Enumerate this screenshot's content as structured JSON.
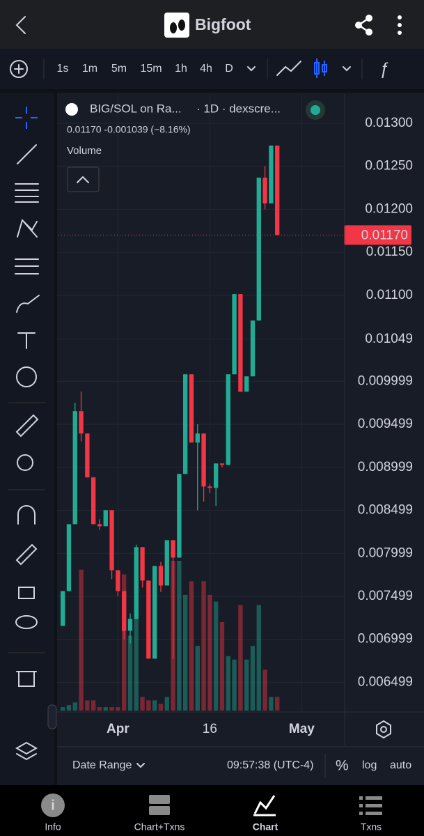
{
  "header": {
    "title": "Bigfoot"
  },
  "toolbar": {
    "intervals": [
      "1s",
      "1m",
      "5m",
      "15m",
      "1h",
      "4h",
      "D"
    ]
  },
  "legend": {
    "symbol": "BIG/SOL on Ra...",
    "source": "· 1D · dexscre...",
    "readout": "0.01170 -0.001039 (−8.16%)",
    "volume_label": "Volume"
  },
  "chart_data": {
    "type": "candlestick",
    "x": [
      -8,
      -7,
      -6,
      -5,
      -4,
      -3,
      -2,
      -1,
      0,
      1,
      2,
      3,
      4,
      5,
      6,
      7,
      8,
      9,
      10,
      11,
      12,
      13,
      14,
      15,
      16,
      17,
      18,
      19,
      20,
      21,
      22,
      23,
      24,
      25,
      26,
      27
    ],
    "open": [
      0.007155,
      0.00756,
      0.008338,
      0.009652,
      0.009392,
      0.008882,
      0.008338,
      0.008314,
      0.008501,
      0.007803,
      0.00756,
      0.007098,
      0.007236,
      0.008071,
      0.007682,
      0.006774,
      0.007852,
      0.007625,
      0.008152,
      0.007949,
      0.008922,
      0.010081,
      0.009287,
      0.009392,
      0.008776,
      0.00876,
      0.009044,
      0.009028,
      0.010081,
      0.011014,
      0.009879,
      0.010057,
      0.010706,
      0.012368,
      0.012068,
      0.012741
    ],
    "high": [
      0.00756,
      0.008338,
      0.009749,
      0.009879,
      0.009392,
      0.008882,
      0.008395,
      0.008501,
      0.008501,
      0.007803,
      0.00756,
      0.0073,
      0.0081,
      0.008071,
      0.007682,
      0.007852,
      0.0079,
      0.008152,
      0.008152,
      0.008922,
      0.010081,
      0.010081,
      0.0095,
      0.009392,
      0.0088,
      0.009044,
      0.009044,
      0.010081,
      0.011014,
      0.011014,
      0.010057,
      0.010706,
      0.012368,
      0.0125,
      0.012741,
      0.012741
    ],
    "low": [
      0.007155,
      0.00756,
      0.008338,
      0.0093,
      0.008882,
      0.008338,
      0.008273,
      0.008314,
      0.0077,
      0.0075,
      0.007,
      0.00695,
      0.007236,
      0.0076,
      0.006774,
      0.006774,
      0.00755,
      0.007625,
      0.006774,
      0.007949,
      0.008922,
      0.009287,
      0.0085,
      0.0086,
      0.0087,
      0.00855,
      0.009,
      0.009028,
      0.010081,
      0.009879,
      0.009879,
      0.010057,
      0.010706,
      0.012,
      0.012068,
      0.0117
    ],
    "close": [
      0.00756,
      0.008338,
      0.009652,
      0.009392,
      0.008882,
      0.008338,
      0.008314,
      0.008501,
      0.007803,
      0.00756,
      0.007098,
      0.007236,
      0.008071,
      0.007682,
      0.006774,
      0.007852,
      0.007625,
      0.008152,
      0.007949,
      0.008922,
      0.010081,
      0.009287,
      0.009392,
      0.008776,
      0.00876,
      0.009044,
      0.009028,
      0.010081,
      0.011014,
      0.009879,
      0.010057,
      0.010706,
      0.012368,
      0.012068,
      0.012741,
      0.0117
    ],
    "volume": [
      5,
      8,
      12,
      207,
      15,
      15,
      5,
      5,
      5,
      5,
      200,
      110,
      200,
      20,
      15,
      15,
      10,
      20,
      220,
      220,
      170,
      190,
      95,
      190,
      170,
      160,
      130,
      80,
      75,
      155,
      75,
      95,
      155,
      60,
      20,
      20
    ],
    "up_color": "#22ab94",
    "down_color": "#f23645",
    "xlim": [
      -8.7,
      38
    ],
    "xticks": [
      {
        "value": 1,
        "label": "Apr"
      },
      16,
      {
        "value": 31,
        "label": "May"
      }
    ],
    "ylim": [
      0.00617,
      0.01334
    ],
    "yticks": [
      {
        "value": 0.013,
        "label": "0.01300"
      },
      {
        "value": 0.0125,
        "label": "0.01250"
      },
      {
        "value": 0.012,
        "label": "0.01200"
      },
      {
        "value": 0.0115,
        "label": "0.01150"
      },
      {
        "value": 0.011,
        "label": "0.01100"
      },
      0.01049,
      0.009999,
      0.009499,
      0.008999,
      0.008499,
      0.007999,
      0.007499,
      0.006999,
      0.006499
    ],
    "last_price": {
      "value": 0.0117,
      "label": "0.01170"
    },
    "grid": true
  },
  "footer": {
    "date_range": "Date Range",
    "time": "09:57:38 (UTC-4)",
    "percent": "%",
    "log": "log",
    "auto": "auto"
  },
  "nav": {
    "tabs": [
      "Info",
      "Chart+Txns",
      "Chart",
      "Txns"
    ]
  }
}
